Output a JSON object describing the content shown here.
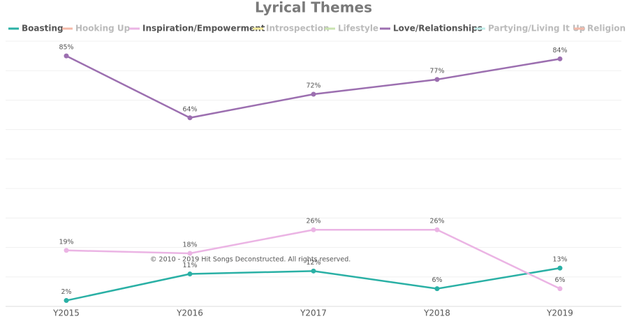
{
  "chart_data": {
    "type": "line",
    "title": "Lyrical Themes",
    "categories": [
      "Y2015",
      "Y2016",
      "Y2017",
      "Y2018",
      "Y2019"
    ],
    "ylim": [
      0,
      90
    ],
    "yticks": [
      0,
      10,
      20,
      30,
      40,
      50,
      60,
      70,
      80,
      90
    ],
    "grid": true,
    "legend": "top",
    "series": [
      {
        "name": "Boasting",
        "color": "#2ab0a5",
        "values": [
          2,
          11,
          12,
          6,
          13
        ],
        "value_labels": [
          "2%",
          "11%",
          "12%",
          "6%",
          "13%"
        ]
      },
      {
        "name": "Hooking Up",
        "color": "#f4b8a8",
        "visible": false
      },
      {
        "name": "Inspiration/Empowerment",
        "color": "#ebb4e4",
        "values": [
          19,
          18,
          26,
          26,
          6
        ],
        "value_labels": [
          "19%",
          "18%",
          "26%",
          "26%",
          "6%"
        ]
      },
      {
        "name": "Introspection",
        "color": "#f5ec9c",
        "visible": false
      },
      {
        "name": "Lifestyle",
        "color": "#c9e3b0",
        "visible": false
      },
      {
        "name": "Love/Relationships",
        "color": "#9c6fb0",
        "values": [
          85,
          64,
          72,
          77,
          84
        ],
        "value_labels": [
          "85%",
          "64%",
          "72%",
          "77%",
          "84%"
        ]
      },
      {
        "name": "Partying/Living It Up",
        "color": "#bfece8",
        "visible": false
      },
      {
        "name": "Religion",
        "color": "#f4b8a8",
        "visible": false
      }
    ],
    "annotations": [
      "© 2010 - 2019 Hit Songs Deconstructed. All rights reserved."
    ]
  }
}
